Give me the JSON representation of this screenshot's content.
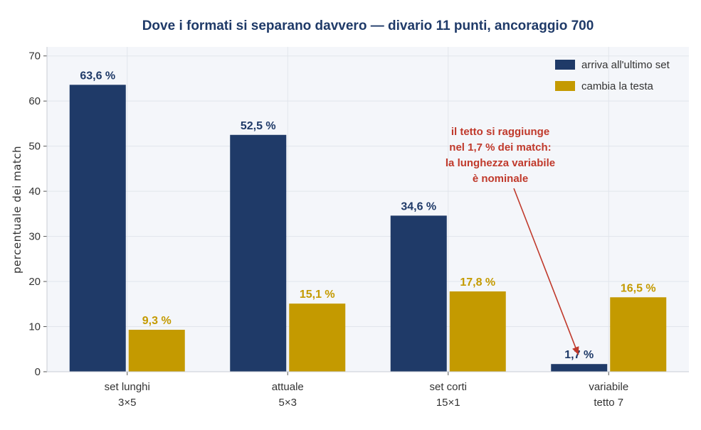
{
  "chart_data": {
    "type": "bar",
    "title": "Dove i formati si separano davvero — divario 11 punti, ancoraggio 700",
    "ylabel": "percentuale dei match",
    "xlabel": "",
    "ylim": [
      0,
      72
    ],
    "yticks": [
      0,
      10,
      20,
      30,
      40,
      50,
      60,
      70
    ],
    "grid": true,
    "legend_position": "top-right",
    "categories": [
      [
        "set lunghi",
        "3×5"
      ],
      [
        "attuale",
        "5×3"
      ],
      [
        "set corti",
        "15×1"
      ],
      [
        "variabile",
        "tetto 7"
      ]
    ],
    "series": [
      {
        "name": "arriva all'ultimo set",
        "color": "#1f3a68",
        "values": [
          63.6,
          52.5,
          34.6,
          1.7
        ],
        "labels": [
          "63,6 %",
          "52,5 %",
          "34,6 %",
          "1,7 %"
        ]
      },
      {
        "name": "cambia la testa",
        "color": "#c49a00",
        "values": [
          9.3,
          15.1,
          17.8,
          16.5
        ],
        "labels": [
          "9,3 %",
          "15,1 %",
          "17,8 %",
          "16,5 %"
        ]
      }
    ],
    "annotation": {
      "lines": [
        "il tetto si raggiunge",
        "nel 1,7 % dei match:",
        "la lunghezza variabile",
        "è nominale"
      ],
      "color": "#c0392b",
      "target_category_index": 3,
      "target_series_index": 0
    }
  }
}
